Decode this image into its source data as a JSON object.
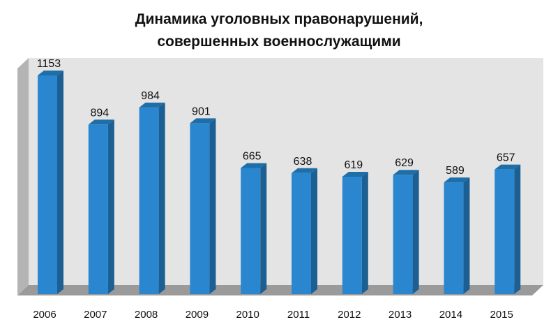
{
  "chart_data": {
    "type": "bar",
    "title_lines": [
      "Динамика уголовных правонарушений,",
      "совершенных военнослужащими"
    ],
    "categories": [
      "2006",
      "2007",
      "2008",
      "2009",
      "2010",
      "2011",
      "2012",
      "2013",
      "2014",
      "2015"
    ],
    "values": [
      1153,
      894,
      984,
      901,
      665,
      638,
      619,
      629,
      589,
      657
    ],
    "ylim": [
      0,
      1153
    ],
    "grid": false,
    "legend": "none",
    "colors": {
      "bar_front": "#2a86cf",
      "bar_side": "#1c5f93",
      "bar_top": "#1f6ea8",
      "back_wall": "#e4e4e4",
      "side_wall": "#b4b4b4",
      "floor": "#9a9a9a"
    }
  }
}
